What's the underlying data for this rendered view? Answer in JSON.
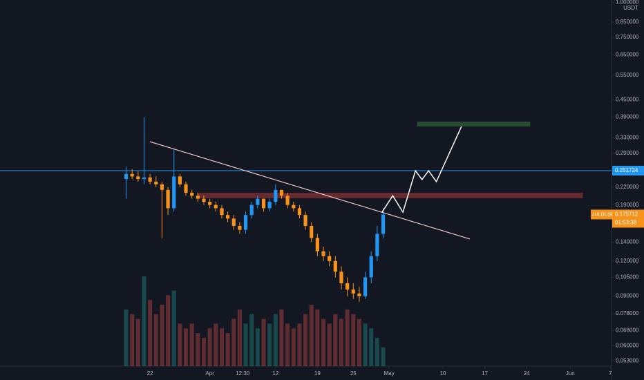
{
  "chart_data": {
    "type": "candlestick",
    "symbol": "JULDUSDT",
    "currency": "USDT",
    "log_scale": true,
    "ylim": [
      0.0507,
      1.019
    ],
    "yticks": [
      {
        "value": 1,
        "label": "1.000000"
      },
      {
        "value": 0.85,
        "label": "0.850000"
      },
      {
        "value": 0.75,
        "label": "0.750000"
      },
      {
        "value": 0.65,
        "label": "0.650000"
      },
      {
        "value": 0.55,
        "label": "0.550000"
      },
      {
        "value": 0.45,
        "label": "0.450000"
      },
      {
        "value": 0.39,
        "label": "0.390000"
      },
      {
        "value": 0.33,
        "label": "0.330000"
      },
      {
        "value": 0.29,
        "label": "0.290000"
      },
      {
        "value": 0.22,
        "label": "0.220000"
      },
      {
        "value": 0.19,
        "label": "0.190000"
      },
      {
        "value": 0.14,
        "label": "0.140000"
      },
      {
        "value": 0.12,
        "label": "0.120000"
      },
      {
        "value": 0.105,
        "label": "0.105000"
      },
      {
        "value": 0.09,
        "label": "0.090000"
      },
      {
        "value": 0.078,
        "label": "0.078000"
      },
      {
        "value": 0.068,
        "label": "0.068000"
      },
      {
        "value": 0.06,
        "label": "0.060000"
      },
      {
        "value": 0.053,
        "label": "0.053000"
      }
    ],
    "xlim": [
      55.9,
      158.2
    ],
    "xticks": [
      {
        "value": 81,
        "label": "22"
      },
      {
        "value": 91,
        "label": "Apr"
      },
      {
        "value": 96.5,
        "label": "12:30"
      },
      {
        "value": 102,
        "label": "12"
      },
      {
        "value": 109,
        "label": "19"
      },
      {
        "value": 115,
        "label": "25"
      },
      {
        "value": 121,
        "label": "May"
      },
      {
        "value": 130,
        "label": "10"
      },
      {
        "value": 137,
        "label": "17"
      },
      {
        "value": 144,
        "label": "24"
      },
      {
        "value": 151.3,
        "label": "Jun"
      },
      {
        "value": 158,
        "label": "7"
      }
    ],
    "x": [
      77,
      78,
      79,
      80,
      81,
      82,
      83,
      84,
      85,
      86,
      87,
      88,
      89,
      90,
      91,
      92,
      93,
      94,
      95,
      96,
      97,
      98,
      99,
      100,
      101,
      102,
      103,
      104,
      105,
      106,
      107,
      108,
      109,
      110,
      111,
      112,
      113,
      114,
      115,
      116,
      117,
      118,
      119,
      120
    ],
    "open": [
      0.235,
      0.245,
      0.24,
      0.235,
      0.238,
      0.23,
      0.225,
      0.215,
      0.185,
      0.24,
      0.225,
      0.21,
      0.205,
      0.2,
      0.195,
      0.19,
      0.185,
      0.175,
      0.17,
      0.16,
      0.155,
      0.175,
      0.19,
      0.2,
      0.185,
      0.195,
      0.215,
      0.205,
      0.19,
      0.185,
      0.175,
      0.16,
      0.145,
      0.13,
      0.125,
      0.12,
      0.11,
      0.1,
      0.095,
      0.092,
      0.09,
      0.105,
      0.125,
      0.15
    ],
    "high": [
      0.26,
      0.255,
      0.25,
      0.39,
      0.245,
      0.24,
      0.23,
      0.22,
      0.3,
      0.245,
      0.23,
      0.215,
      0.21,
      0.205,
      0.2,
      0.195,
      0.19,
      0.18,
      0.175,
      0.165,
      0.18,
      0.195,
      0.205,
      0.2,
      0.2,
      0.225,
      0.215,
      0.21,
      0.195,
      0.19,
      0.18,
      0.165,
      0.15,
      0.135,
      0.13,
      0.125,
      0.115,
      0.105,
      0.1,
      0.097,
      0.11,
      0.13,
      0.16,
      0.185
    ],
    "low": [
      0.2,
      0.235,
      0.23,
      0.225,
      0.225,
      0.22,
      0.145,
      0.175,
      0.18,
      0.22,
      0.205,
      0.2,
      0.195,
      0.19,
      0.185,
      0.18,
      0.17,
      0.165,
      0.155,
      0.15,
      0.15,
      0.17,
      0.185,
      0.18,
      0.18,
      0.19,
      0.2,
      0.185,
      0.18,
      0.17,
      0.155,
      0.14,
      0.125,
      0.12,
      0.115,
      0.105,
      0.095,
      0.09,
      0.088,
      0.086,
      0.088,
      0.1,
      0.12,
      0.145
    ],
    "close": [
      0.245,
      0.24,
      0.235,
      0.238,
      0.23,
      0.225,
      0.215,
      0.185,
      0.24,
      0.225,
      0.21,
      0.205,
      0.2,
      0.195,
      0.19,
      0.185,
      0.175,
      0.17,
      0.16,
      0.155,
      0.175,
      0.19,
      0.2,
      0.185,
      0.195,
      0.215,
      0.205,
      0.19,
      0.185,
      0.175,
      0.16,
      0.145,
      0.13,
      0.125,
      0.12,
      0.11,
      0.1,
      0.095,
      0.092,
      0.09,
      0.105,
      0.125,
      0.15,
      0.175712
    ],
    "volume": [
      60,
      55,
      50,
      95,
      70,
      55,
      65,
      75,
      80,
      45,
      40,
      45,
      35,
      30,
      40,
      45,
      40,
      35,
      50,
      60,
      45,
      55,
      40,
      50,
      45,
      55,
      60,
      45,
      40,
      45,
      55,
      65,
      60,
      50,
      45,
      55,
      50,
      60,
      55,
      50,
      45,
      40,
      30,
      20
    ],
    "up_color": "#2196f3",
    "down_color": "#f7931a",
    "last_price": 0.175712,
    "countdown": "01:53:38",
    "horizontal_line": {
      "value": 0.251724,
      "color": "#2196f3"
    },
    "trend_line": {
      "x": [
        81,
        134.5
      ],
      "values": [
        0.319,
        0.1437
      ],
      "color": "#e8c7c7"
    },
    "resistance_zone": {
      "x": [
        88.9,
        153.4
      ],
      "values": [
        0.2007,
        0.21
      ],
      "color": "#7a2e34"
    },
    "target_zone": {
      "x": [
        125.7,
        144.6
      ],
      "values": [
        0.3615,
        0.376
      ],
      "color": "#2e5a37"
    },
    "projection": {
      "x": [
        119.8,
        121.6,
        123.3,
        125.4,
        126.5,
        127.6,
        128.9,
        133.1
      ],
      "values": [
        0.179,
        0.205,
        0.179,
        0.2515,
        0.234,
        0.2515,
        0.23,
        0.3615
      ],
      "color": "#ffffff"
    }
  }
}
